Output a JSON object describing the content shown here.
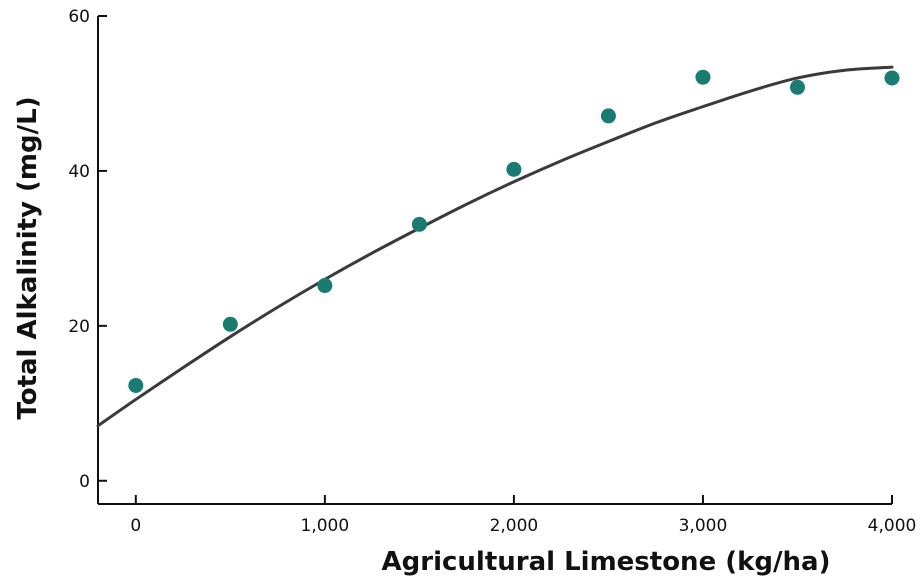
{
  "chart_data": {
    "type": "scatter",
    "title": "",
    "xlabel": "Agricultural Limestone (kg/ha)",
    "ylabel": "Total Alkalinity (mg/L)",
    "xlim": [
      -200,
      4000
    ],
    "ylim": [
      -3,
      60
    ],
    "x_ticks": [
      0,
      1000,
      2000,
      3000,
      4000
    ],
    "x_tick_labels": [
      "0",
      "1,000",
      "2,000",
      "3,000",
      "4,000"
    ],
    "y_ticks": [
      0,
      20,
      40,
      60
    ],
    "y_tick_labels": [
      "0",
      "20",
      "40",
      "60"
    ],
    "grid": false,
    "series": [
      {
        "points": [
          {
            "x": 0,
            "y": 12.3
          },
          {
            "x": 500,
            "y": 20.2
          },
          {
            "x": 1000,
            "y": 25.2
          },
          {
            "x": 1500,
            "y": 33.1
          },
          {
            "x": 2000,
            "y": 40.2
          },
          {
            "x": 2500,
            "y": 47.1
          },
          {
            "x": 3000,
            "y": 52.1
          },
          {
            "x": 3500,
            "y": 50.8
          },
          {
            "x": 4000,
            "y": 52.0
          }
        ]
      }
    ],
    "fit_curve": {
      "x": [
        -200,
        0,
        250,
        500,
        750,
        1000,
        1250,
        1500,
        1750,
        2000,
        2250,
        2500,
        2750,
        3000,
        3250,
        3500,
        3750,
        4000
      ],
      "y": [
        7.1,
        10.5,
        14.6,
        18.6,
        22.4,
        26.0,
        29.4,
        32.6,
        35.7,
        38.6,
        41.3,
        43.8,
        46.2,
        48.3,
        50.3,
        52.0,
        53.0,
        53.4
      ]
    },
    "colors": {
      "points": "#1a7b70",
      "curve": "#3a3a3a",
      "axes": "#111111"
    }
  }
}
